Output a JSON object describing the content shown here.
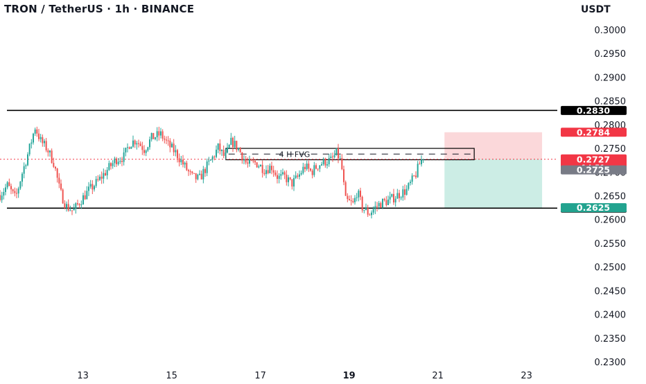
{
  "header": {
    "title": "TRON / TetherUS · 1h · BINANCE",
    "currency": "USDT"
  },
  "chart_data": {
    "type": "candlestick",
    "y_ticks": [
      "0.3000",
      "0.2950",
      "0.2900",
      "0.2850",
      "0.2800",
      "0.2750",
      "0.2700",
      "0.2650",
      "0.2600",
      "0.2550",
      "0.2500",
      "0.2450",
      "0.2400",
      "0.2350",
      "0.2300"
    ],
    "x_ticks": [
      {
        "label": "13",
        "day": 13,
        "bold": false
      },
      {
        "label": "15",
        "day": 15,
        "bold": false
      },
      {
        "label": "17",
        "day": 17,
        "bold": false
      },
      {
        "label": "19",
        "day": 19,
        "bold": true
      },
      {
        "label": "21",
        "day": 21,
        "bold": false
      },
      {
        "label": "23",
        "day": 23,
        "bold": false
      }
    ],
    "ylim": [
      0.23,
      0.3
    ],
    "xlim_days": [
      11.13,
      23.63
    ],
    "colors": {
      "up": "#26a69a",
      "down": "#ef5350",
      "line": "#000000",
      "price": "#f23645",
      "fvg_text": "#131722"
    },
    "horizontal_lines": [
      {
        "value": 0.283,
        "label": "0.2830"
      },
      {
        "value": 0.2624,
        "label": "0.2624"
      }
    ],
    "fvg_zone": {
      "label": "4 H FVG",
      "x_start_day": 16.22,
      "x_end_day": 21.82,
      "top": 0.275,
      "bottom": 0.2726
    },
    "position": {
      "x_start_day": 21.15,
      "x_end_day": 23.35,
      "entry": 0.2727,
      "stop": 0.2784,
      "target": 0.2625
    },
    "price_labels": [
      {
        "value": 0.2784,
        "text": "0.2784",
        "color": "#f23645"
      },
      {
        "value": 0.2727,
        "text": "0.2727",
        "color": "#f23645"
      },
      {
        "value": 0.2625,
        "text": "0.2625",
        "color": "#22a38f"
      },
      {
        "value": 0.2725,
        "text": "0.2725",
        "color": "#787b86"
      }
    ],
    "countdown": "14:51",
    "current_price": 0.2727,
    "waypoints": [
      {
        "d": 11.13,
        "p": 0.2652
      },
      {
        "d": 11.3,
        "p": 0.2672
      },
      {
        "d": 11.48,
        "p": 0.2644
      },
      {
        "d": 11.62,
        "p": 0.2695
      },
      {
        "d": 11.78,
        "p": 0.2745
      },
      {
        "d": 11.92,
        "p": 0.2795
      },
      {
        "d": 12.05,
        "p": 0.2765
      },
      {
        "d": 12.2,
        "p": 0.2748
      },
      {
        "d": 12.35,
        "p": 0.2718
      },
      {
        "d": 12.48,
        "p": 0.266
      },
      {
        "d": 12.62,
        "p": 0.2628
      },
      {
        "d": 12.78,
        "p": 0.2618
      },
      {
        "d": 12.95,
        "p": 0.264
      },
      {
        "d": 13.12,
        "p": 0.266
      },
      {
        "d": 13.35,
        "p": 0.2682
      },
      {
        "d": 13.55,
        "p": 0.2705
      },
      {
        "d": 13.75,
        "p": 0.2727
      },
      {
        "d": 13.92,
        "p": 0.2732
      },
      {
        "d": 14.05,
        "p": 0.276
      },
      {
        "d": 14.2,
        "p": 0.2768
      },
      {
        "d": 14.38,
        "p": 0.2748
      },
      {
        "d": 14.55,
        "p": 0.2772
      },
      {
        "d": 14.75,
        "p": 0.278
      },
      {
        "d": 14.92,
        "p": 0.2758
      },
      {
        "d": 15.1,
        "p": 0.274
      },
      {
        "d": 15.25,
        "p": 0.2718
      },
      {
        "d": 15.45,
        "p": 0.269
      },
      {
        "d": 15.62,
        "p": 0.2685
      },
      {
        "d": 15.78,
        "p": 0.271
      },
      {
        "d": 15.92,
        "p": 0.273
      },
      {
        "d": 16.05,
        "p": 0.2752
      },
      {
        "d": 16.2,
        "p": 0.273
      },
      {
        "d": 16.35,
        "p": 0.2765
      },
      {
        "d": 16.5,
        "p": 0.275
      },
      {
        "d": 16.7,
        "p": 0.2715
      },
      {
        "d": 16.9,
        "p": 0.272
      },
      {
        "d": 17.1,
        "p": 0.2705
      },
      {
        "d": 17.25,
        "p": 0.2712
      },
      {
        "d": 17.4,
        "p": 0.2688
      },
      {
        "d": 17.55,
        "p": 0.269
      },
      {
        "d": 17.7,
        "p": 0.2675
      },
      {
        "d": 17.85,
        "p": 0.269
      },
      {
        "d": 18.0,
        "p": 0.2712
      },
      {
        "d": 18.15,
        "p": 0.27
      },
      {
        "d": 18.3,
        "p": 0.2715
      },
      {
        "d": 18.45,
        "p": 0.2722
      },
      {
        "d": 18.6,
        "p": 0.2725
      },
      {
        "d": 18.72,
        "p": 0.274
      },
      {
        "d": 18.82,
        "p": 0.272
      },
      {
        "d": 18.92,
        "p": 0.264
      },
      {
        "d": 19.1,
        "p": 0.2632
      },
      {
        "d": 19.18,
        "p": 0.266
      },
      {
        "d": 19.3,
        "p": 0.2625
      },
      {
        "d": 19.45,
        "p": 0.2612
      },
      {
        "d": 19.58,
        "p": 0.2625
      },
      {
        "d": 19.72,
        "p": 0.2635
      },
      {
        "d": 19.9,
        "p": 0.264
      },
      {
        "d": 20.1,
        "p": 0.2652
      },
      {
        "d": 20.3,
        "p": 0.2662
      },
      {
        "d": 20.5,
        "p": 0.2695
      },
      {
        "d": 20.62,
        "p": 0.2725
      },
      {
        "d": 20.68,
        "p": 0.2727
      }
    ]
  }
}
